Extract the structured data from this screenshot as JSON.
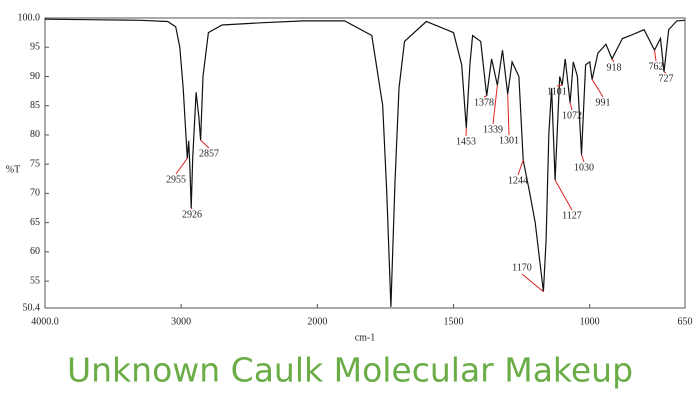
{
  "chart_data": {
    "type": "line",
    "title": "Unknown Caulk Molecular Makeup",
    "xlabel": "cm-1",
    "ylabel": "%T",
    "xlim": [
      4000,
      650
    ],
    "ylim": [
      50.4,
      100
    ],
    "xbreak": 2000,
    "xticks": [
      {
        "value": 4000,
        "label": "4000.0"
      },
      3000,
      2000,
      1500,
      1000,
      650
    ],
    "yticks": [
      {
        "value": 100,
        "label": "100.0"
      },
      95,
      90,
      85,
      80,
      75,
      70,
      65,
      60,
      55,
      50.4
    ],
    "color": "#111111",
    "annotation_color": "#e02020",
    "x": [
      4000,
      3600,
      3300,
      3100,
      3040,
      3010,
      2985,
      2965,
      2955,
      2945,
      2935,
      2926,
      2915,
      2890,
      2870,
      2857,
      2840,
      2800,
      2700,
      2400,
      2100,
      1900,
      1800,
      1760,
      1745,
      1730,
      1715,
      1700,
      1680,
      1600,
      1500,
      1470,
      1453,
      1440,
      1430,
      1400,
      1378,
      1360,
      1339,
      1320,
      1301,
      1285,
      1260,
      1244,
      1220,
      1200,
      1170,
      1160,
      1150,
      1140,
      1127,
      1110,
      1101,
      1090,
      1072,
      1060,
      1045,
      1030,
      1015,
      1000,
      991,
      970,
      940,
      918,
      880,
      850,
      800,
      762,
      740,
      727,
      710,
      680,
      650
    ],
    "values": [
      99.8,
      99.7,
      99.6,
      99.4,
      98.5,
      95,
      88,
      80,
      76,
      79,
      74,
      67.5,
      76,
      87.3,
      83,
      79.1,
      90,
      97.5,
      98.8,
      99.2,
      99.5,
      99.5,
      97,
      85,
      70,
      50.6,
      72,
      88,
      96,
      99.4,
      97.5,
      92,
      81.2,
      92,
      97,
      96,
      86.7,
      93,
      88.5,
      94.5,
      87,
      92.5,
      90,
      75.7,
      70,
      65,
      53.2,
      62,
      80,
      88,
      72.3,
      90,
      88.5,
      93,
      85.5,
      92.5,
      90,
      76.6,
      92,
      92.5,
      89.5,
      94,
      95.5,
      93,
      96.5,
      97,
      98,
      94.5,
      96.5,
      90.8,
      98,
      99.5,
      99.6
    ],
    "annotations": [
      {
        "x": 2955,
        "y": 76
      },
      {
        "x": 2926,
        "y": 67.5
      },
      {
        "x": 2857,
        "y": 79.1
      },
      {
        "x": 1453,
        "y": 81.2
      },
      {
        "x": 1378,
        "y": 86.7
      },
      {
        "x": 1339,
        "y": 88.5
      },
      {
        "x": 1301,
        "y": 87
      },
      {
        "x": 1244,
        "y": 75.7
      },
      {
        "x": 1170,
        "y": 53.2
      },
      {
        "x": 1127,
        "y": 72.3
      },
      {
        "x": 1101,
        "y": 88.5
      },
      {
        "x": 1072,
        "y": 85.5
      },
      {
        "x": 1030,
        "y": 76.6
      },
      {
        "x": 991,
        "y": 89.5
      },
      {
        "x": 918,
        "y": 93
      },
      {
        "x": 762,
        "y": 94.5
      },
      {
        "x": 727,
        "y": 90.8
      }
    ]
  }
}
